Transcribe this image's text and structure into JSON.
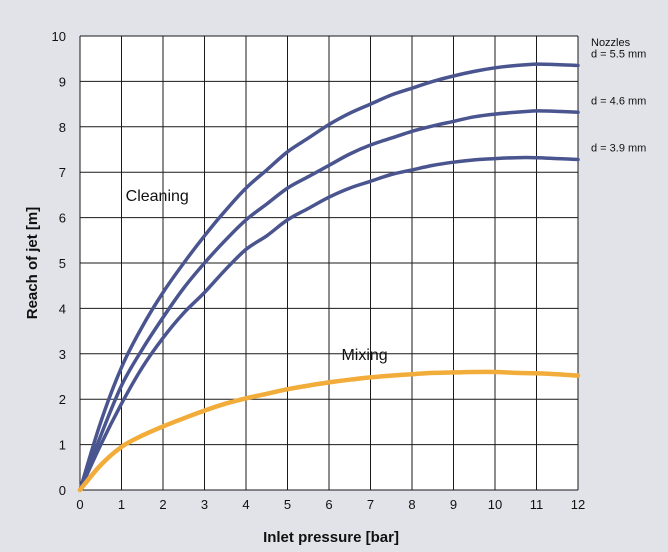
{
  "chart_data": {
    "type": "line",
    "xlabel": "Inlet pressure [bar]",
    "ylabel": "Reach of jet [m]",
    "xlim": [
      0,
      12
    ],
    "ylim": [
      0,
      10
    ],
    "x_ticks": [
      "0",
      "1",
      "2",
      "3",
      "4",
      "5",
      "6",
      "7",
      "8",
      "9",
      "10",
      "11",
      "12"
    ],
    "y_ticks": [
      "0",
      "1",
      "2",
      "3",
      "4",
      "5",
      "6",
      "7",
      "8",
      "9",
      "10"
    ],
    "grid": true,
    "legend_title": "Nozzles",
    "annotations": [
      {
        "text": "Cleaning",
        "x": 1.1,
        "y": 6.5
      },
      {
        "text": "Mixing",
        "x": 6.3,
        "y": 3.0
      }
    ],
    "colors": {
      "cleaning": "#4a5590",
      "mixing": "#f2ac3a",
      "background": "#e2e3e9",
      "plot_background": "#ffffff"
    },
    "series": [
      {
        "name": "d = 5.5 mm",
        "color": "#4a5590",
        "x": [
          0,
          0.5,
          1,
          1.5,
          2,
          2.5,
          3,
          3.5,
          4,
          4.5,
          5,
          5.5,
          6,
          6.5,
          7,
          7.5,
          8,
          8.5,
          9,
          9.5,
          10,
          10.5,
          11,
          11.5,
          12
        ],
        "y": [
          0,
          1.5,
          2.7,
          3.6,
          4.35,
          5.0,
          5.6,
          6.15,
          6.65,
          7.05,
          7.45,
          7.75,
          8.05,
          8.3,
          8.5,
          8.7,
          8.85,
          9.0,
          9.12,
          9.22,
          9.3,
          9.35,
          9.38,
          9.37,
          9.35
        ]
      },
      {
        "name": "d = 4.6 mm",
        "color": "#4a5590",
        "x": [
          0,
          0.5,
          1,
          1.5,
          2,
          2.5,
          3,
          3.5,
          4,
          4.5,
          5,
          5.5,
          6,
          6.5,
          7,
          7.5,
          8,
          8.5,
          9,
          9.5,
          10,
          10.5,
          11,
          11.5,
          12
        ],
        "y": [
          0,
          1.2,
          2.3,
          3.1,
          3.8,
          4.45,
          5.0,
          5.5,
          5.95,
          6.3,
          6.65,
          6.9,
          7.15,
          7.4,
          7.6,
          7.75,
          7.9,
          8.02,
          8.12,
          8.22,
          8.28,
          8.32,
          8.35,
          8.34,
          8.32
        ]
      },
      {
        "name": "d = 3.9 mm",
        "color": "#4a5590",
        "x": [
          0,
          0.5,
          1,
          1.5,
          2,
          2.5,
          3,
          3.5,
          4,
          4.5,
          5,
          5.5,
          6,
          6.5,
          7,
          7.5,
          8,
          8.5,
          9,
          9.5,
          10,
          10.5,
          11,
          11.5,
          12
        ],
        "y": [
          0,
          1.0,
          1.9,
          2.7,
          3.35,
          3.9,
          4.35,
          4.85,
          5.3,
          5.6,
          5.95,
          6.2,
          6.45,
          6.65,
          6.8,
          6.95,
          7.05,
          7.15,
          7.22,
          7.27,
          7.3,
          7.32,
          7.32,
          7.3,
          7.28
        ]
      },
      {
        "name": "Mixing",
        "color": "#f2ac3a",
        "x": [
          0,
          0.5,
          1,
          1.5,
          2,
          2.5,
          3,
          3.5,
          4,
          4.5,
          5,
          5.5,
          6,
          6.5,
          7,
          7.5,
          8,
          8.5,
          9,
          9.5,
          10,
          10.5,
          11,
          11.5,
          12
        ],
        "y": [
          0,
          0.55,
          0.95,
          1.2,
          1.4,
          1.58,
          1.75,
          1.9,
          2.02,
          2.12,
          2.22,
          2.3,
          2.37,
          2.43,
          2.48,
          2.52,
          2.55,
          2.58,
          2.59,
          2.6,
          2.6,
          2.58,
          2.57,
          2.55,
          2.52
        ]
      }
    ]
  }
}
